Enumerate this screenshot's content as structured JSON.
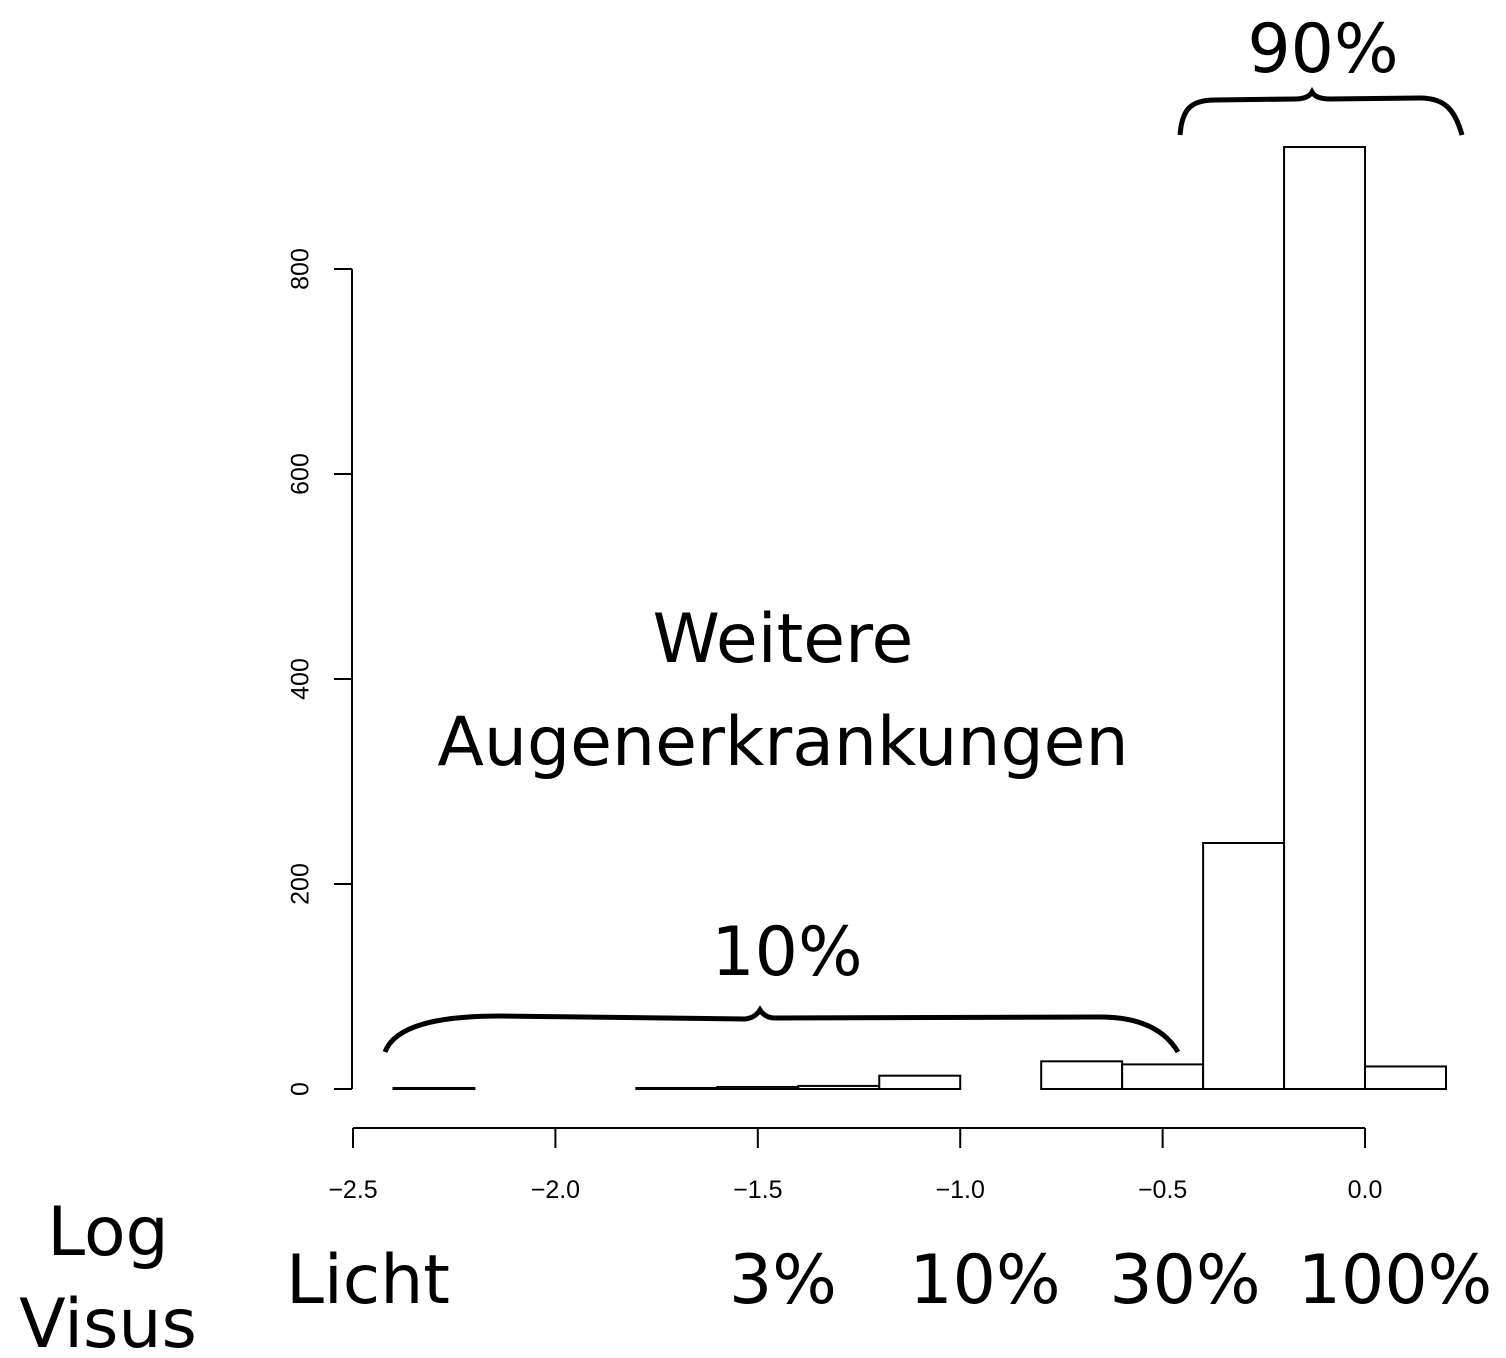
{
  "chart_data": {
    "type": "histogram",
    "bins": [
      -2.4,
      -2.2,
      -2.0,
      -1.8,
      -1.6,
      -1.4,
      -1.2,
      -1.0,
      -0.8,
      -0.6,
      -0.4,
      -0.2,
      0.0,
      0.2
    ],
    "values": [
      1,
      0,
      0,
      1,
      2,
      3,
      13,
      0,
      27,
      24,
      240,
      919,
      22
    ],
    "color": "#ffffff",
    "edge_color": "#000000",
    "xlim": [
      -2.5,
      0.2
    ],
    "xticks": [
      {
        "value": -2.5,
        "label": "−2.5"
      },
      {
        "value": -2.0,
        "label": "−2.0"
      },
      {
        "value": -1.5,
        "label": "−1.5"
      },
      {
        "value": -1.0,
        "label": "−1.0"
      },
      {
        "value": -0.5,
        "label": "−0.5"
      },
      {
        "value": 0.0,
        "label": "0.0"
      }
    ],
    "ylim": [
      0,
      920
    ],
    "yticks": [
      0,
      200,
      400,
      600,
      800
    ],
    "annotations": [
      "90%",
      "Weitere",
      "Augenerkrankungen",
      "10%"
    ],
    "axis_title": [
      "Log",
      "Visus"
    ],
    "secondary_labels": [
      "Licht",
      "3%",
      "10%",
      "30%",
      "100%"
    ]
  }
}
